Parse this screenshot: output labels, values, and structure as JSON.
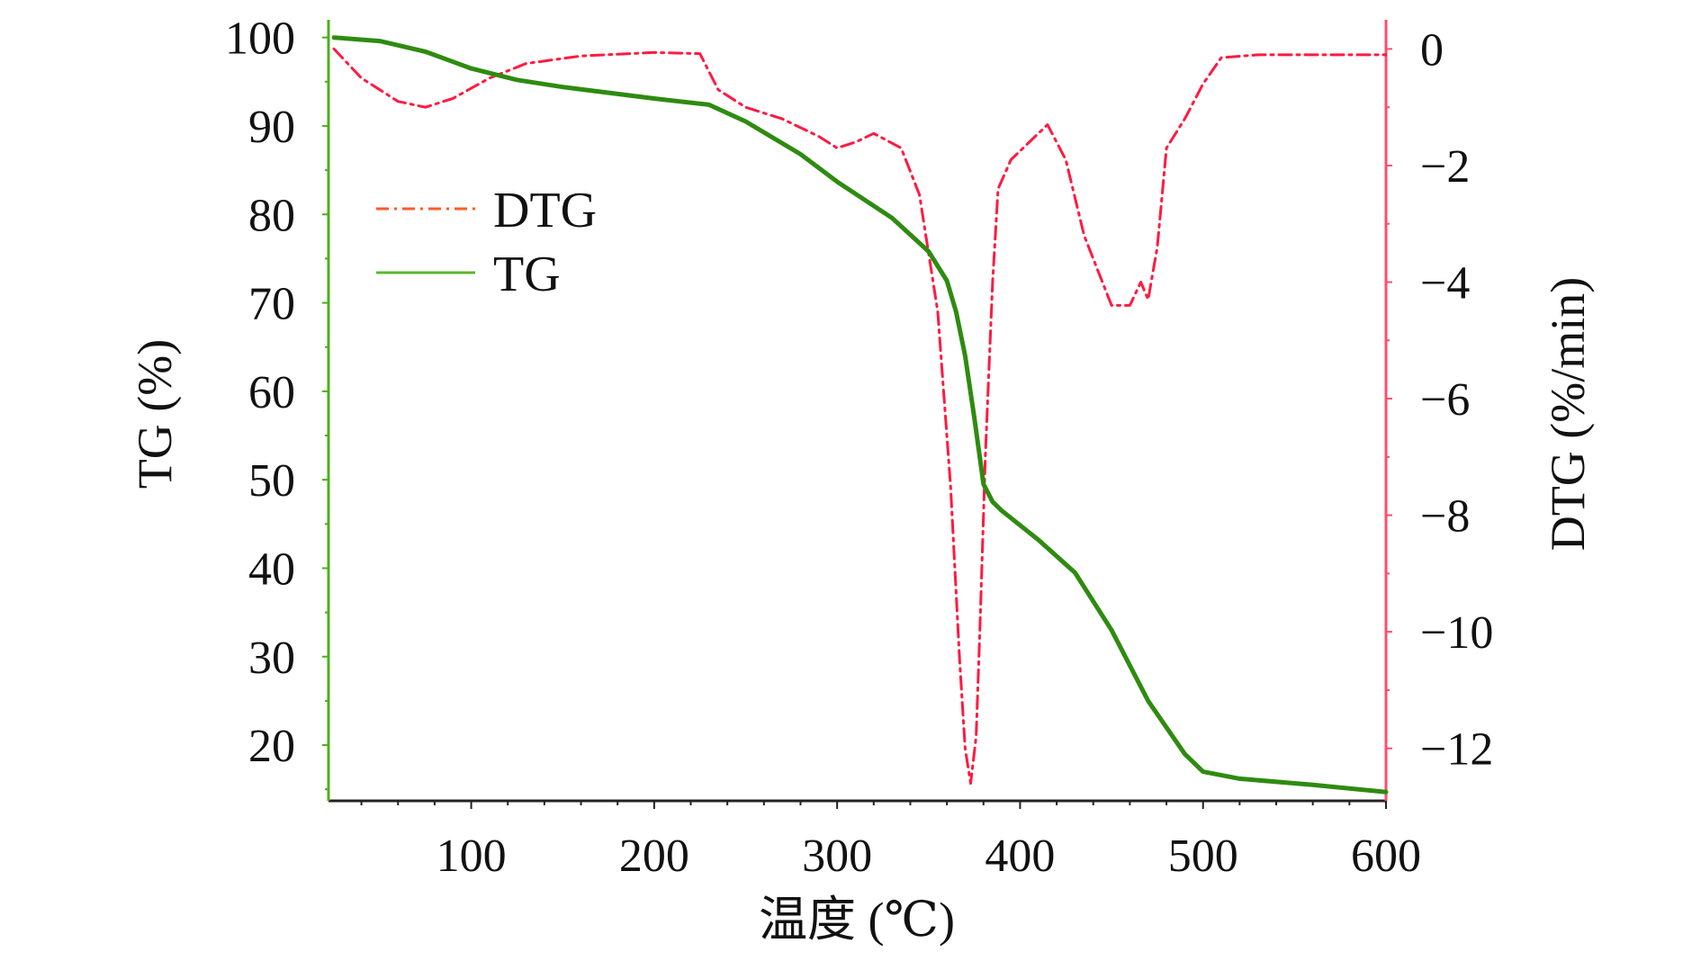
{
  "chart_data": {
    "type": "line",
    "title": "",
    "xlabel": "温度 (℃)",
    "ylabel": "TG (%)",
    "ylabel_right": "DTG (%/min)",
    "xlim": [
      22,
      600
    ],
    "ylim": [
      13.7,
      102
    ],
    "ylim_right": [
      -12.9,
      0.5
    ],
    "x_ticks": [
      100,
      200,
      300,
      400,
      500,
      600
    ],
    "y_ticks": [
      20,
      30,
      40,
      50,
      60,
      70,
      80,
      90,
      100
    ],
    "y_ticks_right": [
      0,
      -2,
      -4,
      -6,
      -8,
      -10,
      -12
    ],
    "x_tick_labels": [
      "100",
      "200",
      "300",
      "400",
      "500",
      "600"
    ],
    "y_tick_labels": [
      "20",
      "30",
      "40",
      "50",
      "60",
      "70",
      "80",
      "90",
      "100"
    ],
    "y_tick_labels_right": [
      "0",
      "−2",
      "−4",
      "−6",
      "−8",
      "−10",
      "−12"
    ],
    "grid": false,
    "legend_position": "upper-left",
    "colors": {
      "TG": "#2e8b10",
      "DTG": "#ff1a40",
      "left_axis": "#4caf1a",
      "right_axis": "#ff4d6d",
      "legend_dtg": "#ff5a2a"
    },
    "series": [
      {
        "name": "DTG",
        "axis": "right",
        "style": "dash-dot",
        "x": [
          25,
          40,
          50,
          60,
          75,
          90,
          110,
          130,
          160,
          200,
          225,
          235,
          250,
          270,
          290,
          300,
          310,
          320,
          335,
          345,
          355,
          362,
          367,
          370,
          373,
          376,
          378,
          381,
          385,
          388,
          395,
          405,
          415,
          425,
          435,
          445,
          450,
          460,
          466,
          470,
          475,
          480,
          490,
          500,
          510,
          530,
          560,
          600
        ],
        "values": [
          0,
          -0.5,
          -0.7,
          -0.9,
          -1.0,
          -0.85,
          -0.5,
          -0.25,
          -0.12,
          -0.06,
          -0.08,
          -0.7,
          -1.0,
          -1.2,
          -1.5,
          -1.7,
          -1.6,
          -1.45,
          -1.7,
          -2.5,
          -4.5,
          -7.5,
          -10.5,
          -12.0,
          -12.6,
          -11.8,
          -10.0,
          -7.0,
          -4.0,
          -2.4,
          -1.9,
          -1.6,
          -1.3,
          -1.9,
          -3.2,
          -4.0,
          -4.4,
          -4.4,
          -4.0,
          -4.3,
          -3.4,
          -1.7,
          -1.2,
          -0.6,
          -0.15,
          -0.1,
          -0.1,
          -0.1
        ]
      },
      {
        "name": "TG",
        "axis": "left",
        "style": "solid",
        "x": [
          25,
          50,
          75,
          100,
          125,
          150,
          200,
          230,
          250,
          280,
          300,
          330,
          350,
          360,
          365,
          370,
          375,
          380,
          385,
          390,
          410,
          430,
          450,
          470,
          490,
          500,
          520,
          560,
          600
        ],
        "values": [
          100,
          99.6,
          98.4,
          96.5,
          95.2,
          94.4,
          93.1,
          92.4,
          90.5,
          86.8,
          83.7,
          79.6,
          75.8,
          72.5,
          69,
          64,
          57,
          49.5,
          47.5,
          46.5,
          43.2,
          39.5,
          33,
          25,
          19,
          17,
          16.2,
          15.5,
          14.7
        ]
      }
    ]
  }
}
